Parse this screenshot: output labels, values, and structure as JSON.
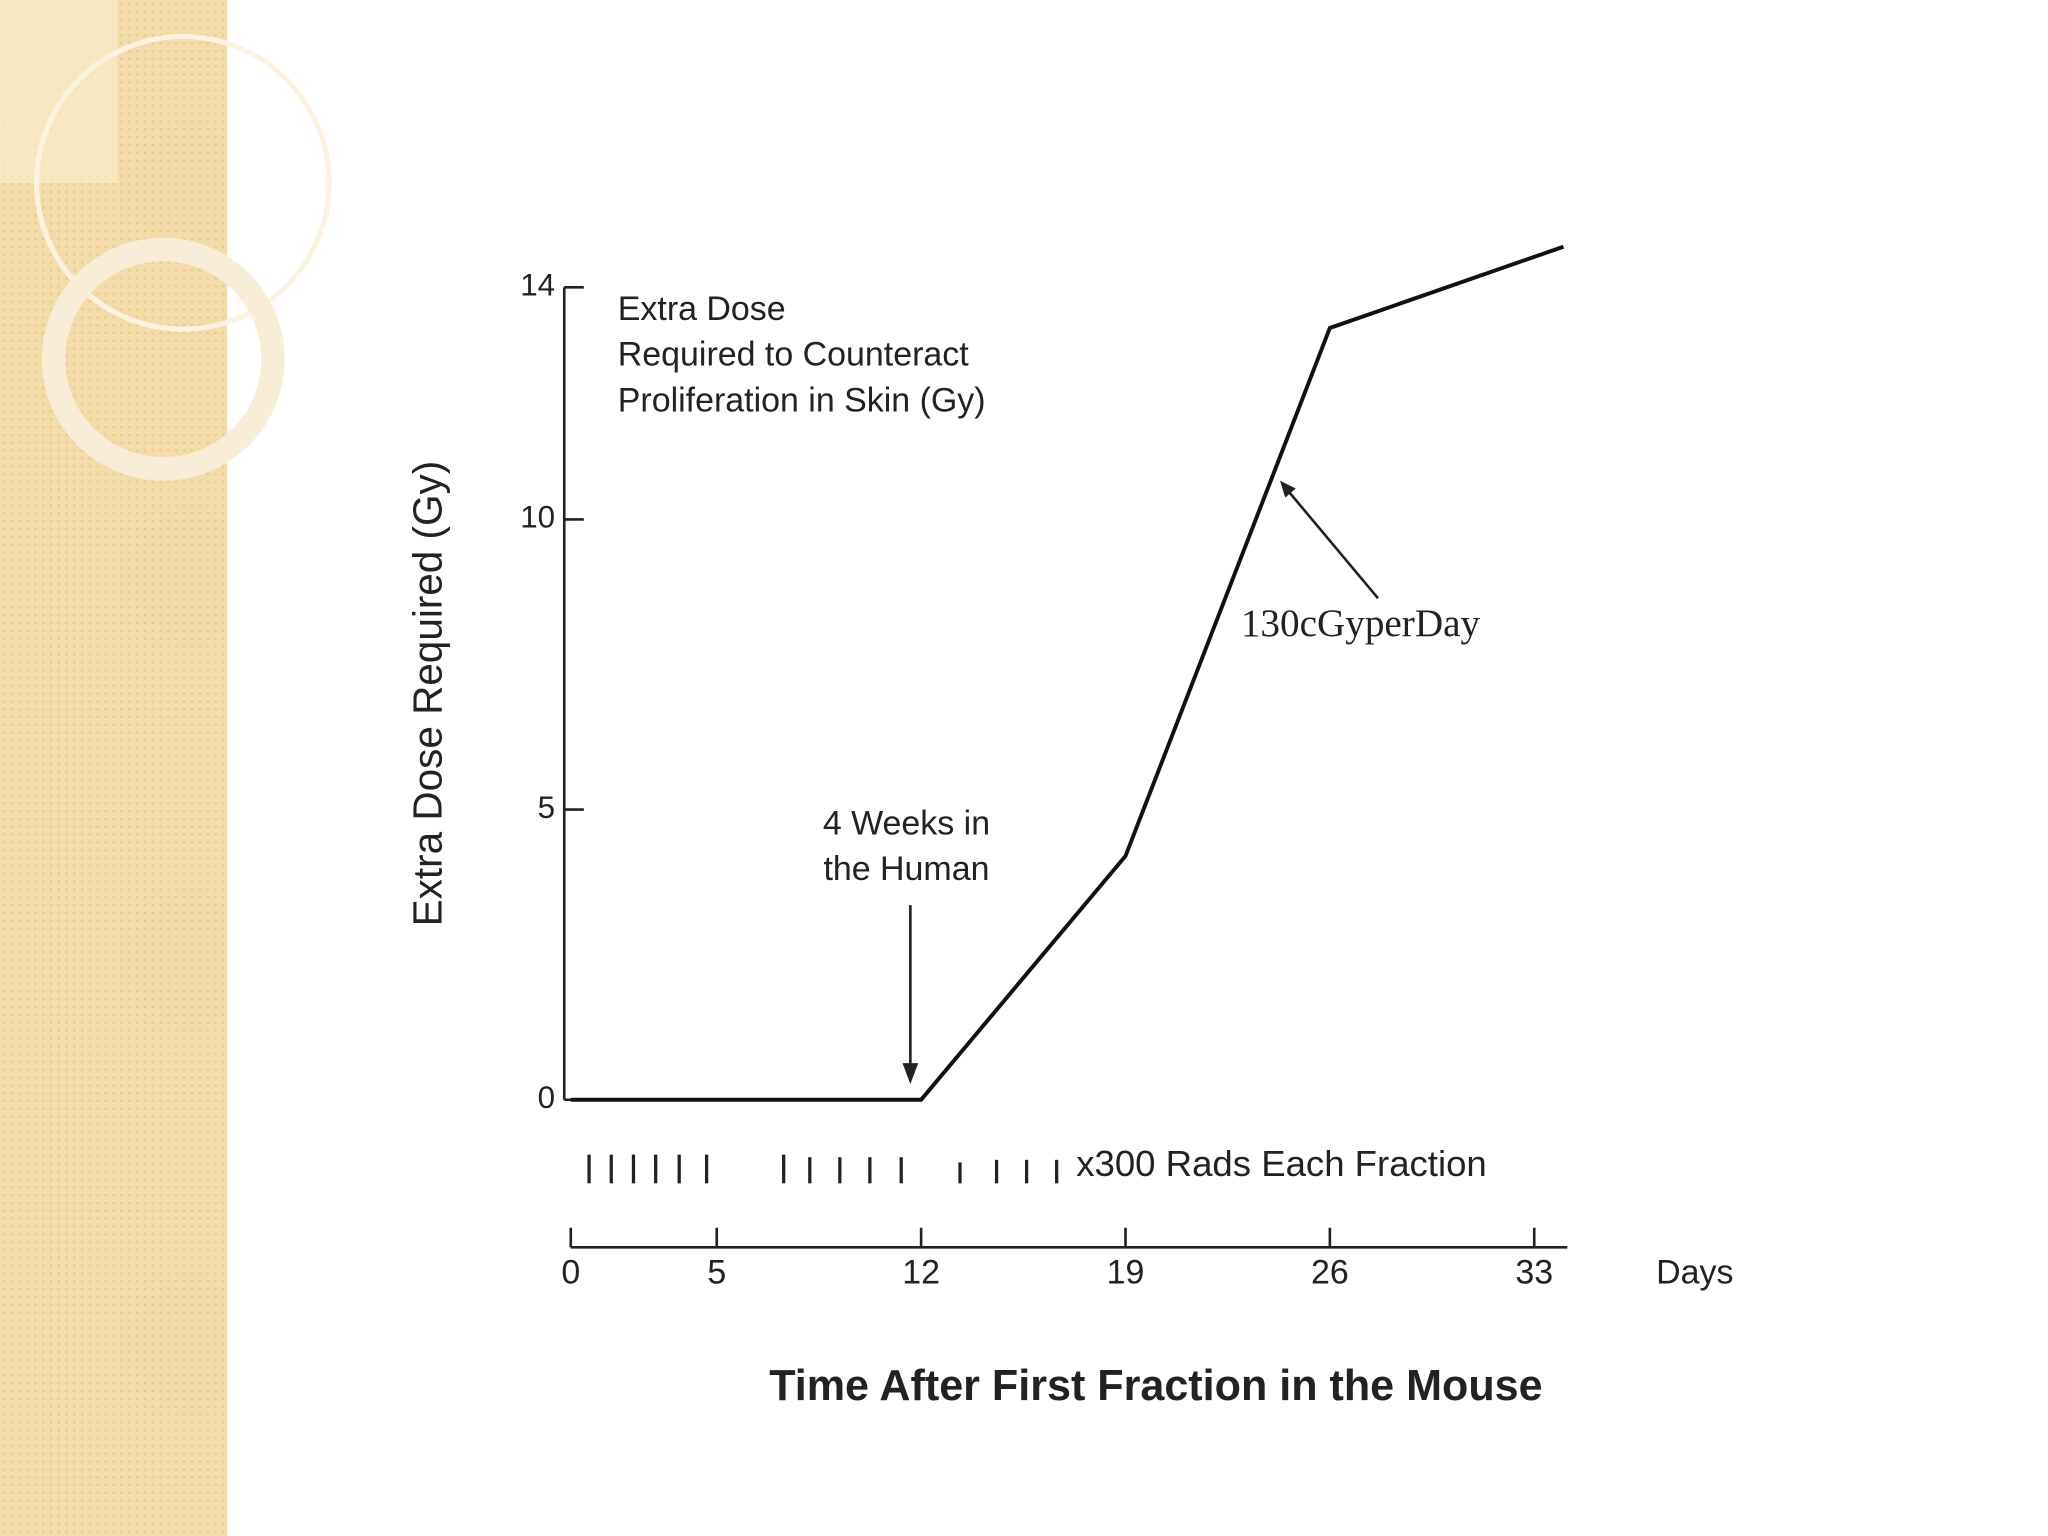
{
  "chart_data": {
    "type": "line",
    "x": [
      0,
      12,
      19,
      26,
      34
    ],
    "values": [
      0,
      0,
      4.2,
      13.3,
      14.7
    ],
    "color": "#111111",
    "xlim": [
      0,
      34
    ],
    "xticks": [
      0,
      5,
      12,
      19,
      26,
      33
    ],
    "ylim": [
      0,
      14
    ],
    "yticks": [
      0,
      5,
      10,
      14
    ],
    "y_label": "Extra Dose Required (Gy)",
    "x_label": "Time After First Fraction in the Mouse",
    "x_unit": "Days",
    "fraction_label": "x300 Rads Each Fraction",
    "annotations": [
      {
        "lines": [
          "Extra Dose",
          "Required to Counteract",
          "Proliferation in Skin (Gy)"
        ]
      },
      {
        "lines": [
          "4 Weeks in",
          "the Human"
        ]
      },
      {
        "lines": [
          "130cGyperDay"
        ]
      }
    ]
  }
}
